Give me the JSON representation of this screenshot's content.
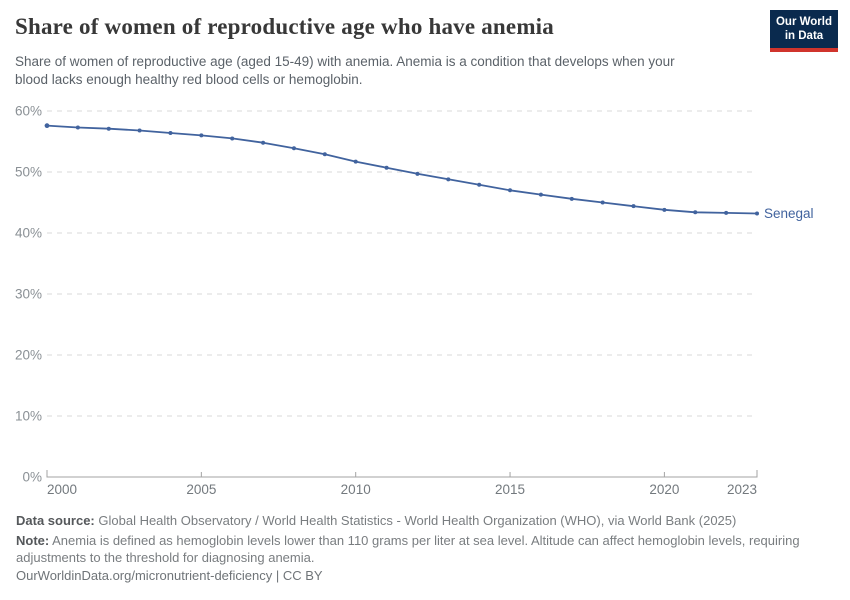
{
  "header": {
    "title": "Share of women of reproductive age who have anemia",
    "subtitle_line1": "Share of women of reproductive age (aged 15-49) with anemia. Anemia is a condition that develops when your",
    "subtitle_line2": "blood lacks enough healthy red blood cells or hemoglobin.",
    "logo": {
      "line1": "Our World",
      "line2": "in Data",
      "bg_color": "#0a2a4e",
      "accent_color": "#d0342c"
    }
  },
  "chart_data": {
    "type": "line",
    "title": "Share of women of reproductive age who have anemia",
    "x": [
      2000,
      2001,
      2002,
      2003,
      2004,
      2005,
      2006,
      2007,
      2008,
      2009,
      2010,
      2011,
      2012,
      2013,
      2014,
      2015,
      2016,
      2017,
      2018,
      2019,
      2020,
      2021,
      2022,
      2023
    ],
    "series": [
      {
        "name": "Senegal",
        "color": "#41639e",
        "values": [
          57.6,
          57.3,
          57.1,
          56.8,
          56.4,
          56.0,
          55.5,
          54.8,
          53.9,
          52.9,
          51.7,
          50.7,
          49.7,
          48.8,
          47.9,
          47.0,
          46.3,
          45.6,
          45.0,
          44.4,
          43.8,
          43.4,
          43.3,
          43.2
        ]
      }
    ],
    "ylim": [
      0,
      60
    ],
    "yticks": [
      0,
      10,
      20,
      30,
      40,
      50,
      60
    ],
    "ytick_suffix": "%",
    "xticks": [
      2000,
      2005,
      2010,
      2015,
      2020,
      2023
    ],
    "grid": "horizontal-dashed",
    "legend": "line-end-label",
    "grid_color": "#dadada",
    "axis_color": "#a3a3a3",
    "ytick_label_color": "#8a9095",
    "xtick_label_color": "#73797e"
  },
  "footer": {
    "datasource_label": "Data source:",
    "datasource_text": "Global Health Observatory / World Health Statistics - World Health Organization (WHO), via World Bank (2025)",
    "note_label": "Note:",
    "note_line1": "Anemia is defined as hemoglobin levels lower than 110 grams per liter at sea level. Altitude can affect hemoglobin levels, requiring",
    "note_line2": "adjustments to the threshold for diagnosing anemia.",
    "link": "OurWorldinData.org/micronutrient-deficiency | CC BY"
  }
}
